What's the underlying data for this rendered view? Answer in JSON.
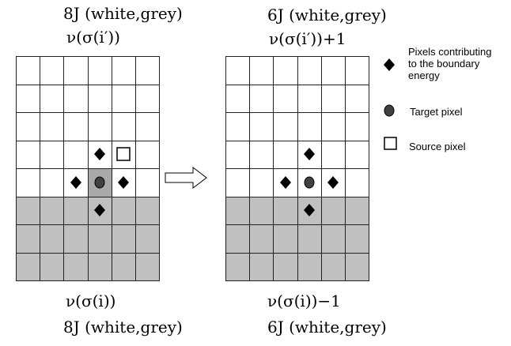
{
  "left_panel": {
    "top_energy": "8J (white,grey)",
    "top_count": "ν(σ(i′))",
    "bottom_count": "ν(σ(i))",
    "bottom_energy": "8J (white,grey)"
  },
  "right_panel": {
    "top_energy": "6J (white,grey)",
    "top_count": "ν(σ(i′))+1",
    "bottom_count": "ν(σ(i))−1",
    "bottom_energy": "6J (white,grey)"
  },
  "legend": {
    "contributing": "Pixels contributing to the boundary energy",
    "target": "Target pixel",
    "source": "Source pixel"
  },
  "colors": {
    "white_cell": "#ffffff",
    "grey_cell": "#c0c0c0",
    "target_cell": "#a9a9a9",
    "marker": "#000000",
    "target_marker": "#404040"
  }
}
